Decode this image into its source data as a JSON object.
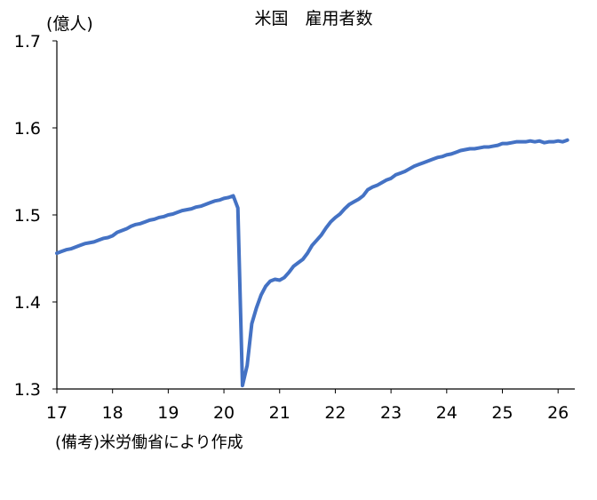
{
  "chart_data": {
    "type": "line",
    "title": "米国　雇用者数",
    "unit_label": "(億人)",
    "note": "(備考)米労働省により作成",
    "xlabel": "",
    "ylabel": "",
    "xlim": [
      17,
      26.3
    ],
    "ylim": [
      1.3,
      1.7
    ],
    "x_ticks": [
      17,
      18,
      19,
      20,
      21,
      22,
      23,
      24,
      25,
      26
    ],
    "x_tick_labels": [
      "17",
      "18",
      "19",
      "20",
      "21",
      "22",
      "23",
      "24",
      "25",
      "26"
    ],
    "y_ticks": [
      1.3,
      1.4,
      1.5,
      1.6,
      1.7
    ],
    "y_tick_labels": [
      "1.3",
      "1.4",
      "1.5",
      "1.6",
      "1.7"
    ],
    "grid": false,
    "legend": "none",
    "series": [
      {
        "color": "#4472C4",
        "x": [
          17.0,
          17.083,
          17.167,
          17.25,
          17.333,
          17.417,
          17.5,
          17.583,
          17.667,
          17.75,
          17.833,
          17.917,
          18.0,
          18.083,
          18.167,
          18.25,
          18.333,
          18.417,
          18.5,
          18.583,
          18.667,
          18.75,
          18.833,
          18.917,
          19.0,
          19.083,
          19.167,
          19.25,
          19.333,
          19.417,
          19.5,
          19.583,
          19.667,
          19.75,
          19.833,
          19.917,
          20.0,
          20.083,
          20.167,
          20.25,
          20.333,
          20.417,
          20.5,
          20.583,
          20.667,
          20.75,
          20.833,
          20.917,
          21.0,
          21.083,
          21.167,
          21.25,
          21.333,
          21.417,
          21.5,
          21.583,
          21.667,
          21.75,
          21.833,
          21.917,
          22.0,
          22.083,
          22.167,
          22.25,
          22.333,
          22.417,
          22.5,
          22.583,
          22.667,
          22.75,
          22.833,
          22.917,
          23.0,
          23.083,
          23.167,
          23.25,
          23.333,
          23.417,
          23.5,
          23.583,
          23.667,
          23.75,
          23.833,
          23.917,
          24.0,
          24.083,
          24.167,
          24.25,
          24.333,
          24.417,
          24.5,
          24.583,
          24.667,
          24.75,
          24.833,
          24.917,
          25.0,
          25.083,
          25.167,
          25.25,
          25.333,
          25.417,
          25.5,
          25.583,
          25.667,
          25.75,
          25.833,
          25.917,
          26.0,
          26.083,
          26.167
        ],
        "y": [
          1.456,
          1.458,
          1.46,
          1.461,
          1.463,
          1.465,
          1.467,
          1.468,
          1.469,
          1.471,
          1.473,
          1.474,
          1.476,
          1.48,
          1.482,
          1.484,
          1.487,
          1.489,
          1.49,
          1.492,
          1.494,
          1.495,
          1.497,
          1.498,
          1.5,
          1.501,
          1.503,
          1.505,
          1.506,
          1.507,
          1.509,
          1.51,
          1.512,
          1.514,
          1.516,
          1.517,
          1.519,
          1.52,
          1.522,
          1.508,
          1.304,
          1.327,
          1.375,
          1.393,
          1.408,
          1.418,
          1.424,
          1.426,
          1.425,
          1.428,
          1.434,
          1.441,
          1.445,
          1.449,
          1.456,
          1.465,
          1.471,
          1.477,
          1.485,
          1.492,
          1.497,
          1.501,
          1.507,
          1.512,
          1.515,
          1.518,
          1.522,
          1.529,
          1.532,
          1.534,
          1.537,
          1.54,
          1.542,
          1.546,
          1.548,
          1.55,
          1.553,
          1.556,
          1.558,
          1.56,
          1.562,
          1.564,
          1.566,
          1.567,
          1.569,
          1.57,
          1.572,
          1.574,
          1.575,
          1.576,
          1.576,
          1.577,
          1.578,
          1.578,
          1.579,
          1.58,
          1.582,
          1.582,
          1.583,
          1.584,
          1.584,
          1.584,
          1.585,
          1.584,
          1.585,
          1.583,
          1.584,
          1.584,
          1.585,
          1.584,
          1.586
        ]
      }
    ]
  }
}
